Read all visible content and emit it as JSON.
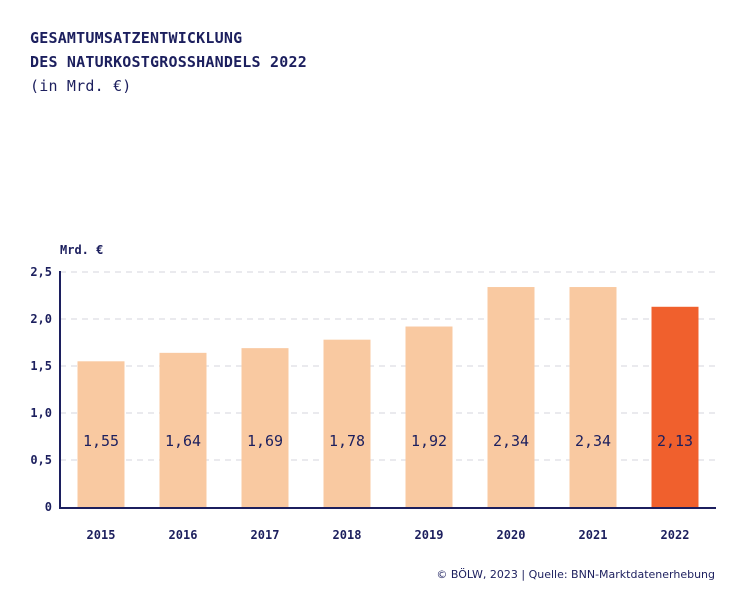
{
  "header": {
    "title_line1": "GESAMTUMSATZENTWICKLUNG",
    "title_line2": "DES NATURKOSTGROSSHANDELS 2022",
    "subtitle": "(in Mrd. €)"
  },
  "footer": {
    "source": "© BÖLW, 2023 | Quelle: BNN-Marktdatenerhebung"
  },
  "colors": {
    "bar": "#f9c9a1",
    "highlight": "#f0602d",
    "text": "#1c1f5e",
    "axis": "#1c1f5e",
    "grid": "#d6d6de"
  },
  "chart_data": {
    "type": "bar",
    "ylabel": "Mrd. €",
    "categories": [
      "2015",
      "2016",
      "2017",
      "2018",
      "2019",
      "2020",
      "2021",
      "2022"
    ],
    "values": [
      1.55,
      1.64,
      1.69,
      1.78,
      1.92,
      2.34,
      2.34,
      2.13
    ],
    "value_labels": [
      "1,55",
      "1,64",
      "1,69",
      "1,78",
      "1,92",
      "2,34",
      "2,34",
      "2,13"
    ],
    "highlight_category": "2022",
    "yticks": [
      0,
      0.5,
      1.0,
      1.5,
      2.0,
      2.5
    ],
    "ytick_labels": [
      "0",
      "0,5",
      "1,0",
      "1,5",
      "2,0",
      "2,5"
    ],
    "ylim": [
      0,
      2.5
    ],
    "grid": true,
    "grid_style": "dashed"
  }
}
